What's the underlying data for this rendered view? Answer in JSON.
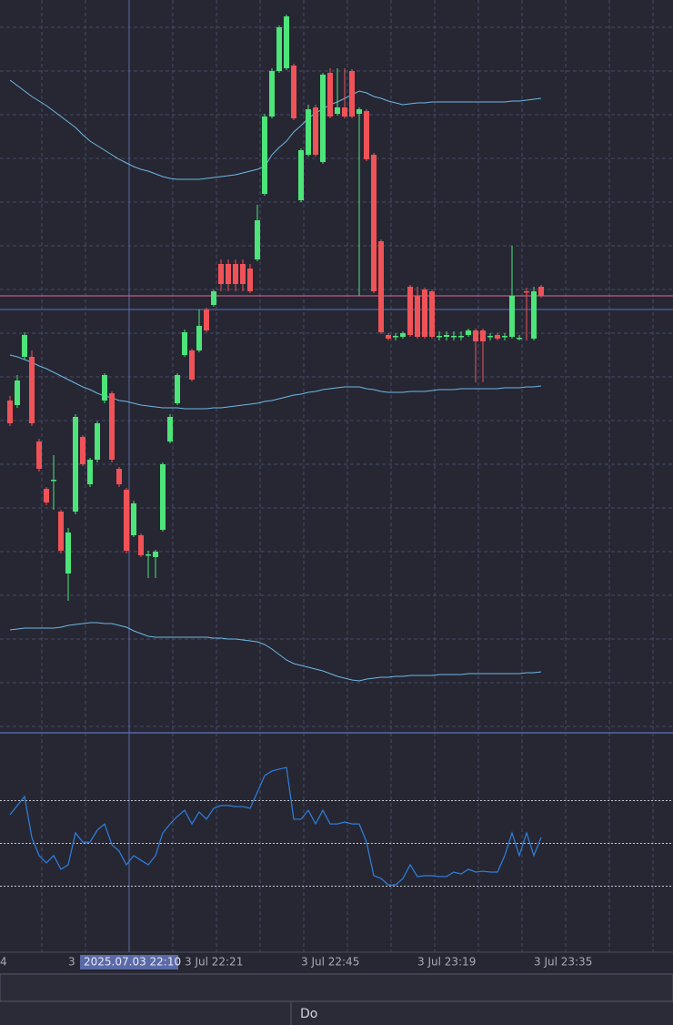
{
  "chart_data": [
    {
      "type": "candlestick",
      "categories": [
        null,
        null,
        null,
        null,
        null,
        null,
        null,
        null,
        "3",
        null,
        null,
        null,
        null,
        null,
        null,
        null,
        null,
        null,
        null,
        null,
        null,
        null,
        null,
        null,
        "3 Jul 22:21",
        null,
        null,
        null,
        null,
        null,
        null,
        null,
        null,
        null,
        null,
        null,
        null,
        null,
        null,
        null,
        "3 Jul 22:45",
        null,
        null,
        null,
        null,
        null,
        null,
        null,
        null,
        null,
        null,
        null,
        null,
        null,
        null,
        null,
        "3 Jul 23:19",
        null,
        null,
        null,
        null,
        null,
        null,
        null,
        null,
        null,
        null,
        null,
        null,
        null,
        null,
        null,
        "3 Jul 23:35",
        null
      ],
      "open": [
        365,
        360,
        413,
        413,
        320,
        268,
        277,
        243,
        175,
        243,
        325,
        273,
        300,
        365,
        373,
        290,
        267,
        217,
        217,
        195,
        193,
        223,
        320,
        362,
        415,
        420,
        420,
        465,
        470,
        515,
        515,
        515,
        515,
        510,
        520,
        592,
        677,
        727,
        730,
        733,
        585,
        635,
        687,
        627,
        725,
        680,
        687,
        727,
        680,
        683,
        635,
        540,
        437,
        435,
        435,
        490,
        480,
        487,
        485,
        435,
        435,
        435,
        435,
        437,
        442,
        442,
        435,
        437,
        435,
        435,
        433,
        485,
        433,
        490
      ],
      "high": [
        370,
        393,
        440,
        420,
        323,
        270,
        305,
        245,
        225,
        350,
        327,
        302,
        342,
        395,
        375,
        292,
        269,
        255,
        219,
        200,
        201,
        297,
        350,
        395,
        443,
        422,
        465,
        467,
        487,
        520,
        520,
        520,
        520,
        515,
        580,
        680,
        730,
        777,
        789,
        735,
        642,
        690,
        690,
        725,
        730,
        730,
        730,
        729,
        687,
        685,
        637,
        542,
        439,
        439,
        441,
        492,
        490,
        489,
        487,
        441,
        441,
        441,
        441,
        444,
        444,
        444,
        439,
        439,
        439,
        535,
        437,
        489,
        490,
        492
      ],
      "low": [
        337,
        357,
        410,
        337,
        287,
        250,
        245,
        197,
        145,
        240,
        293,
        270,
        297,
        362,
        297,
        270,
        197,
        215,
        193,
        170,
        170,
        221,
        318,
        360,
        413,
        386,
        418,
        440,
        468,
        485,
        485,
        485,
        485,
        483,
        518,
        590,
        675,
        725,
        728,
        673,
        583,
        633,
        633,
        625,
        675,
        678,
        675,
        675,
        480,
        628,
        483,
        438,
        431,
        431,
        433,
        435,
        433,
        433,
        433,
        431,
        431,
        431,
        431,
        435,
        385,
        385,
        431,
        431,
        431,
        433,
        431,
        431,
        431,
        478
      ],
      "close": [
        340,
        387,
        437,
        340,
        290,
        253,
        278,
        200,
        220,
        347,
        295,
        300,
        340,
        393,
        300,
        273,
        200,
        252,
        195,
        196,
        199,
        295,
        347,
        393,
        440,
        388,
        447,
        442,
        485,
        493,
        493,
        493,
        493,
        485,
        563,
        677,
        727,
        775,
        787,
        675,
        640,
        685,
        635,
        723,
        677,
        687,
        677,
        677,
        685,
        630,
        485,
        440,
        433,
        436,
        439,
        437,
        435,
        435,
        435,
        436,
        437,
        436,
        436,
        442,
        430,
        430,
        436,
        433,
        436,
        480,
        434,
        484,
        485,
        480
      ],
      "up_color": "#4de47a",
      "down_color": "#ef5358",
      "bands": [
        {
          "color": "#6fb8e6",
          "values": [
            717,
            711,
            705,
            699,
            694,
            689,
            683,
            677,
            671,
            665,
            657,
            650,
            645,
            640,
            635,
            630,
            626,
            622,
            619,
            617,
            614,
            611,
            609,
            608,
            608,
            608,
            608,
            609,
            610,
            611,
            612,
            613,
            615,
            617,
            619,
            622,
            635,
            643,
            650,
            660,
            667,
            675,
            681,
            685,
            690,
            693,
            697,
            701,
            705,
            703,
            699,
            697,
            694,
            692,
            690,
            691,
            692,
            692,
            693,
            693,
            693,
            693,
            693,
            693,
            693,
            693,
            693,
            693,
            693,
            694,
            694,
            695,
            696,
            697
          ]
        },
        {
          "color": "#6fb8e6",
          "values": [
            415,
            413,
            410,
            407,
            403,
            400,
            396,
            392,
            388,
            384,
            380,
            377,
            373,
            370,
            368,
            365,
            364,
            362,
            360,
            359,
            358,
            357,
            357,
            357,
            356,
            356,
            356,
            356,
            357,
            357,
            358,
            359,
            360,
            361,
            362,
            364,
            365,
            367,
            369,
            371,
            372,
            374,
            375,
            377,
            378,
            379,
            380,
            380,
            380,
            378,
            377,
            375,
            374,
            374,
            374,
            375,
            375,
            375,
            376,
            377,
            377,
            377,
            378,
            378,
            378,
            378,
            378,
            378,
            379,
            379,
            379,
            380,
            380,
            381
          ]
        },
        {
          "color": "#6fb8e6",
          "values": [
            113,
            114,
            115,
            115,
            115,
            115,
            115,
            116,
            118,
            119,
            120,
            121,
            121,
            120,
            120,
            118,
            116,
            112,
            109,
            106,
            105,
            105,
            105,
            105,
            105,
            105,
            105,
            105,
            104,
            104,
            103,
            103,
            102,
            101,
            100,
            97,
            92,
            86,
            80,
            76,
            74,
            72,
            70,
            68,
            65,
            62,
            60,
            58,
            57,
            59,
            60,
            61,
            61,
            62,
            62,
            63,
            63,
            63,
            63,
            64,
            64,
            64,
            64,
            65,
            65,
            65,
            65,
            65,
            65,
            65,
            65,
            66,
            66,
            67
          ]
        }
      ],
      "price_lines": [
        {
          "value": 480,
          "color": "#e06a9e"
        },
        {
          "value": 465,
          "color": "#5a6fc0"
        }
      ],
      "ylim": [
        0,
        805
      ],
      "left_edge_label": "4",
      "crosshair_label": "2025.07.03 22:10"
    },
    {
      "type": "line",
      "color": "#2f80e0",
      "values": [
        63.4,
        67.7,
        71.9,
        52.8,
        44.3,
        40.9,
        44.3,
        37.9,
        40,
        54.9,
        50.6,
        50.6,
        56.2,
        59.1,
        49.4,
        46.4,
        40,
        44.3,
        42.1,
        40,
        44.3,
        54.9,
        59.1,
        62.6,
        65.5,
        59.1,
        64.7,
        61.3,
        66.4,
        67.7,
        67.7,
        67.2,
        67.2,
        66.4,
        74,
        81.7,
        83.8,
        84.7,
        85.5,
        61.3,
        61.3,
        65.5,
        59.1,
        65.5,
        59.1,
        59.1,
        60,
        59.1,
        59.1,
        50.6,
        34.9,
        33.6,
        30.6,
        30.6,
        33.6,
        40,
        34.5,
        34.9,
        34.9,
        34.5,
        34.5,
        36.6,
        35.7,
        37.9,
        36.6,
        37,
        36.6,
        36.6,
        44.3,
        54.9,
        44.3,
        54.9,
        44.3,
        52.8
      ],
      "ylim": [
        0,
        100
      ],
      "levels": [
        30,
        50,
        70
      ]
    }
  ],
  "status_bar": {
    "tab": "Do"
  }
}
